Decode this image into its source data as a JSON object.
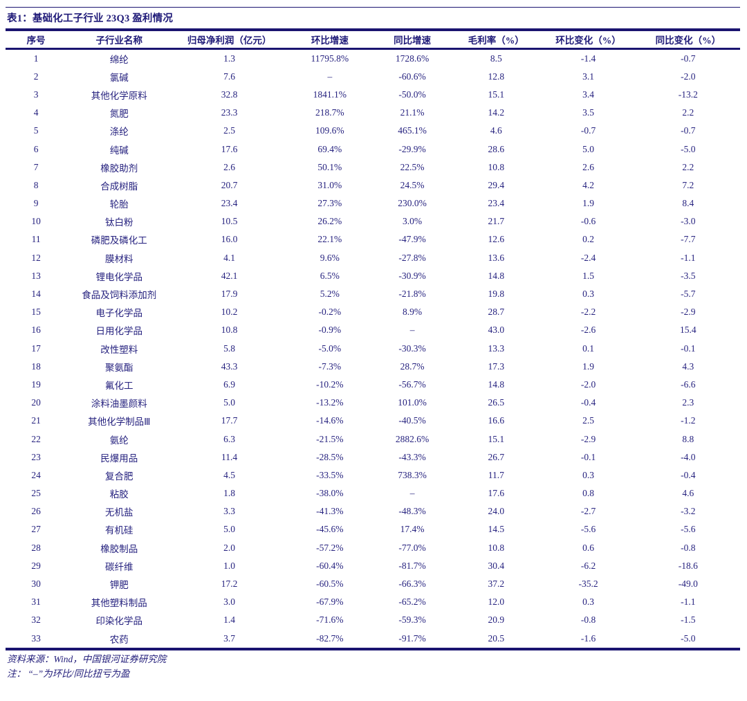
{
  "title": "表1：基础化工子行业 23Q3 盈利情况",
  "colors": {
    "ink": "#26227f",
    "rule": "#1a1470"
  },
  "table": {
    "columns": [
      "序号",
      "子行业名称",
      "归母净利润（亿元）",
      "环比增速",
      "同比增速",
      "毛利率（%）",
      "环比变化（%）",
      "同比变化（%）"
    ],
    "col_widths": [
      "88px",
      "152px",
      "166px",
      "124px",
      "114px",
      "128px",
      "138px",
      "150px"
    ],
    "rows": [
      [
        "1",
        "绵纶",
        "1.3",
        "11795.8%",
        "1728.6%",
        "8.5",
        "-1.4",
        "-0.7"
      ],
      [
        "2",
        "氯碱",
        "7.6",
        "–",
        "-60.6%",
        "12.8",
        "3.1",
        "-2.0"
      ],
      [
        "3",
        "其他化学原料",
        "32.8",
        "1841.1%",
        "-50.0%",
        "15.1",
        "3.4",
        "-13.2"
      ],
      [
        "4",
        "氮肥",
        "23.3",
        "218.7%",
        "21.1%",
        "14.2",
        "3.5",
        "2.2"
      ],
      [
        "5",
        "涤纶",
        "2.5",
        "109.6%",
        "465.1%",
        "4.6",
        "-0.7",
        "-0.7"
      ],
      [
        "6",
        "纯碱",
        "17.6",
        "69.4%",
        "-29.9%",
        "28.6",
        "5.0",
        "-5.0"
      ],
      [
        "7",
        "橡胶助剂",
        "2.6",
        "50.1%",
        "22.5%",
        "10.8",
        "2.6",
        "2.2"
      ],
      [
        "8",
        "合成树脂",
        "20.7",
        "31.0%",
        "24.5%",
        "29.4",
        "4.2",
        "7.2"
      ],
      [
        "9",
        "轮胎",
        "23.4",
        "27.3%",
        "230.0%",
        "23.4",
        "1.9",
        "8.4"
      ],
      [
        "10",
        "钛白粉",
        "10.5",
        "26.2%",
        "3.0%",
        "21.7",
        "-0.6",
        "-3.0"
      ],
      [
        "11",
        "磷肥及磷化工",
        "16.0",
        "22.1%",
        "-47.9%",
        "12.6",
        "0.2",
        "-7.7"
      ],
      [
        "12",
        "膜材料",
        "4.1",
        "9.6%",
        "-27.8%",
        "13.6",
        "-2.4",
        "-1.1"
      ],
      [
        "13",
        "锂电化学品",
        "42.1",
        "6.5%",
        "-30.9%",
        "14.8",
        "1.5",
        "-3.5"
      ],
      [
        "14",
        "食品及饲料添加剂",
        "17.9",
        "5.2%",
        "-21.8%",
        "19.8",
        "0.3",
        "-5.7"
      ],
      [
        "15",
        "电子化学品",
        "10.2",
        "-0.2%",
        "8.9%",
        "28.7",
        "-2.2",
        "-2.9"
      ],
      [
        "16",
        "日用化学品",
        "10.8",
        "-0.9%",
        "–",
        "43.0",
        "-2.6",
        "15.4"
      ],
      [
        "17",
        "改性塑料",
        "5.8",
        "-5.0%",
        "-30.3%",
        "13.3",
        "0.1",
        "-0.1"
      ],
      [
        "18",
        "聚氨酯",
        "43.3",
        "-7.3%",
        "28.7%",
        "17.3",
        "1.9",
        "4.3"
      ],
      [
        "19",
        "氟化工",
        "6.9",
        "-10.2%",
        "-56.7%",
        "14.8",
        "-2.0",
        "-6.6"
      ],
      [
        "20",
        "涂料油墨颜料",
        "5.0",
        "-13.2%",
        "101.0%",
        "26.5",
        "-0.4",
        "2.3"
      ],
      [
        "21",
        "其他化学制品Ⅲ",
        "17.7",
        "-14.6%",
        "-40.5%",
        "16.6",
        "2.5",
        "-1.2"
      ],
      [
        "22",
        "氨纶",
        "6.3",
        "-21.5%",
        "2882.6%",
        "15.1",
        "-2.9",
        "8.8"
      ],
      [
        "23",
        "民爆用品",
        "11.4",
        "-28.5%",
        "-43.3%",
        "26.7",
        "-0.1",
        "-4.0"
      ],
      [
        "24",
        "复合肥",
        "4.5",
        "-33.5%",
        "738.3%",
        "11.7",
        "0.3",
        "-0.4"
      ],
      [
        "25",
        "粘胶",
        "1.8",
        "-38.0%",
        "–",
        "17.6",
        "0.8",
        "4.6"
      ],
      [
        "26",
        "无机盐",
        "3.3",
        "-41.3%",
        "-48.3%",
        "24.0",
        "-2.7",
        "-3.2"
      ],
      [
        "27",
        "有机硅",
        "5.0",
        "-45.6%",
        "17.4%",
        "14.5",
        "-5.6",
        "-5.6"
      ],
      [
        "28",
        "橡胶制品",
        "2.0",
        "-57.2%",
        "-77.0%",
        "10.8",
        "0.6",
        "-0.8"
      ],
      [
        "29",
        "碳纤维",
        "1.0",
        "-60.4%",
        "-81.7%",
        "30.4",
        "-6.2",
        "-18.6"
      ],
      [
        "30",
        "钾肥",
        "17.2",
        "-60.5%",
        "-66.3%",
        "37.2",
        "-35.2",
        "-49.0"
      ],
      [
        "31",
        "其他塑料制品",
        "3.0",
        "-67.9%",
        "-65.2%",
        "12.0",
        "0.3",
        "-1.1"
      ],
      [
        "32",
        "印染化学品",
        "1.4",
        "-71.6%",
        "-59.3%",
        "20.9",
        "-0.8",
        "-1.5"
      ],
      [
        "33",
        "农药",
        "3.7",
        "-82.7%",
        "-91.7%",
        "20.5",
        "-1.6",
        "-5.0"
      ]
    ]
  },
  "footer": {
    "source": "资料来源：Wind，中国银河证券研究院",
    "note": "注： “–”为环比/同比扭亏为盈"
  }
}
